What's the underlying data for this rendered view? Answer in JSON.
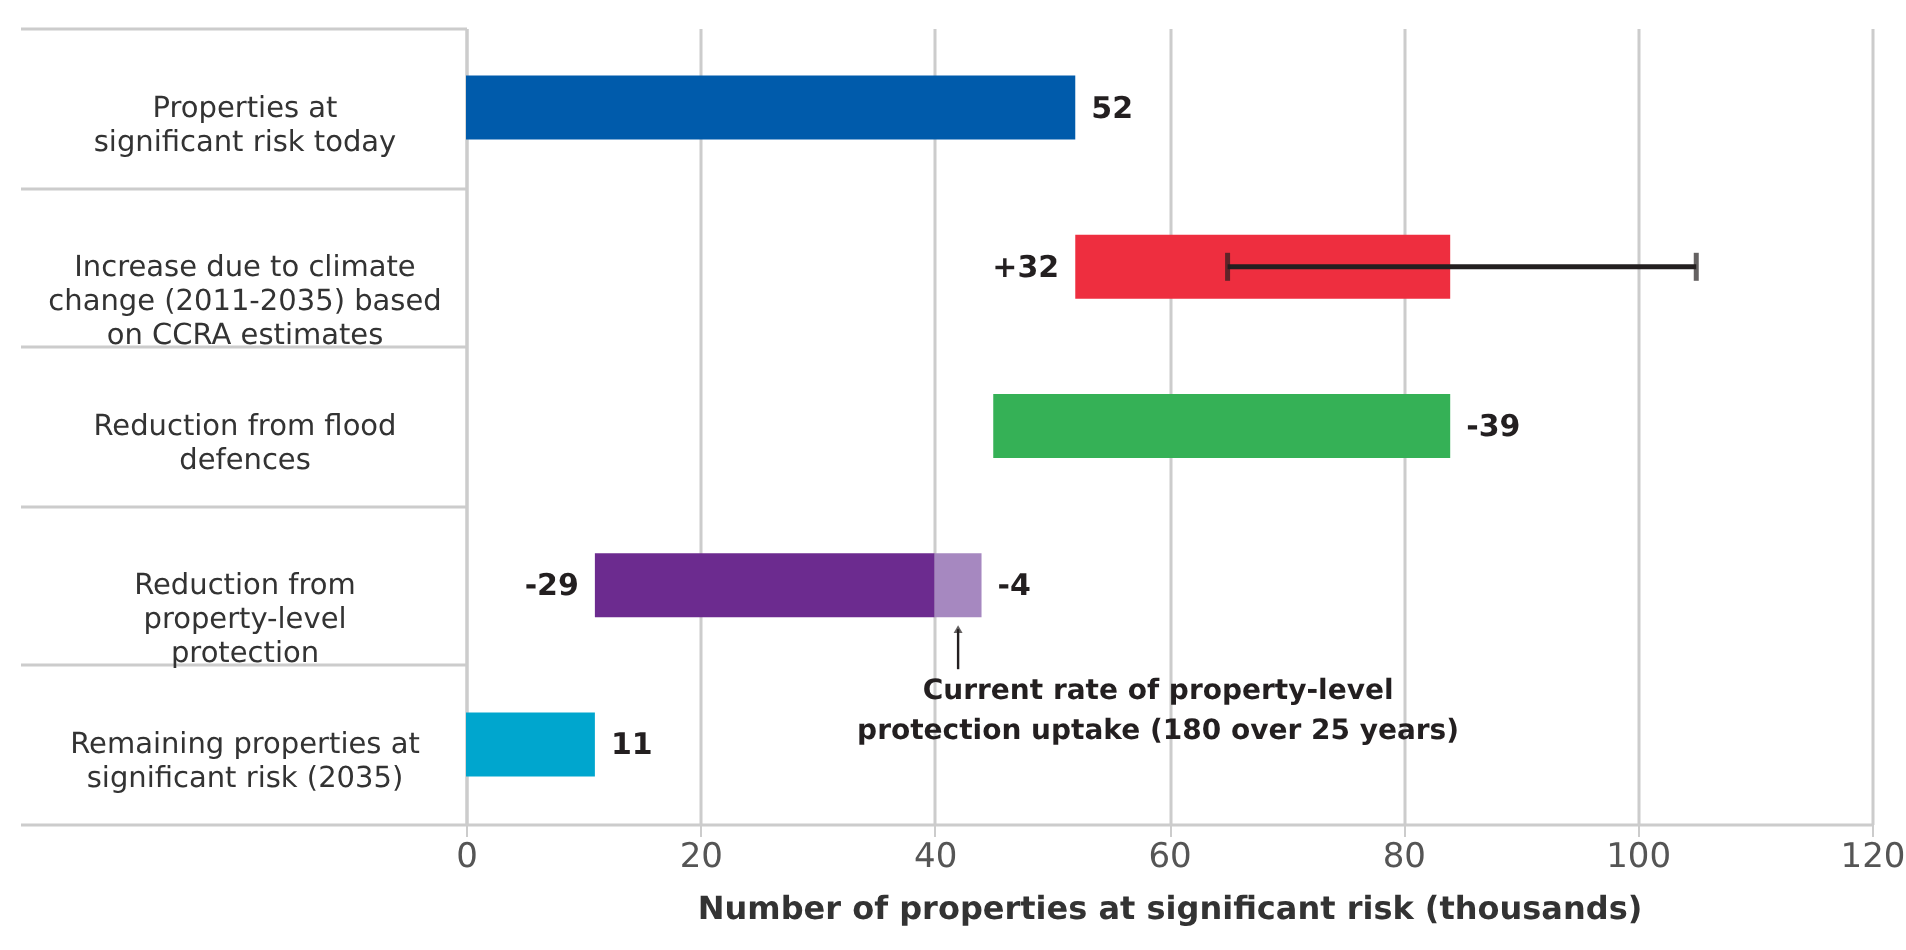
{
  "chart_data": {
    "type": "bar",
    "orientation": "horizontal",
    "categories": [
      "Properties at significant risk today",
      "Increase due to climate change (2011-2035) based on CCRA estimates",
      "Reduction from flood defences",
      "Reduction from property-level protection",
      "Remaining properties at significant risk (2035)"
    ],
    "series": [
      {
        "values": [
          52,
          32,
          -39,
          -29,
          11
        ],
        "base": [
          0,
          52,
          84,
          40,
          0
        ],
        "colors": [
          "#005bab",
          "#ee2e3f",
          "#35b156",
          "#6c2b8f",
          "#00a6ce"
        ],
        "value_labels": [
          "52",
          "+32",
          "-39",
          "-29",
          "11"
        ],
        "errors": [
          null,
          [
            65,
            105
          ],
          null,
          null,
          null
        ]
      },
      {
        "values": [
          null,
          null,
          null,
          -4,
          null
        ],
        "base": [
          null,
          null,
          null,
          44,
          null
        ],
        "colors": [
          null,
          null,
          null,
          "#a688c0",
          null
        ],
        "value_labels": [
          null,
          null,
          null,
          "-4",
          null
        ]
      }
    ],
    "xlabel": "Number of properties at significant risk (thousands)",
    "xlim": [
      0,
      120
    ],
    "xticks": [
      0,
      20,
      40,
      60,
      80,
      100,
      120
    ],
    "grid": "x",
    "annotations": [
      {
        "text": "Current rate of property-level protection uptake (180 over 25 years)",
        "x": 42,
        "y": "Reduction from property-level protection"
      }
    ]
  }
}
